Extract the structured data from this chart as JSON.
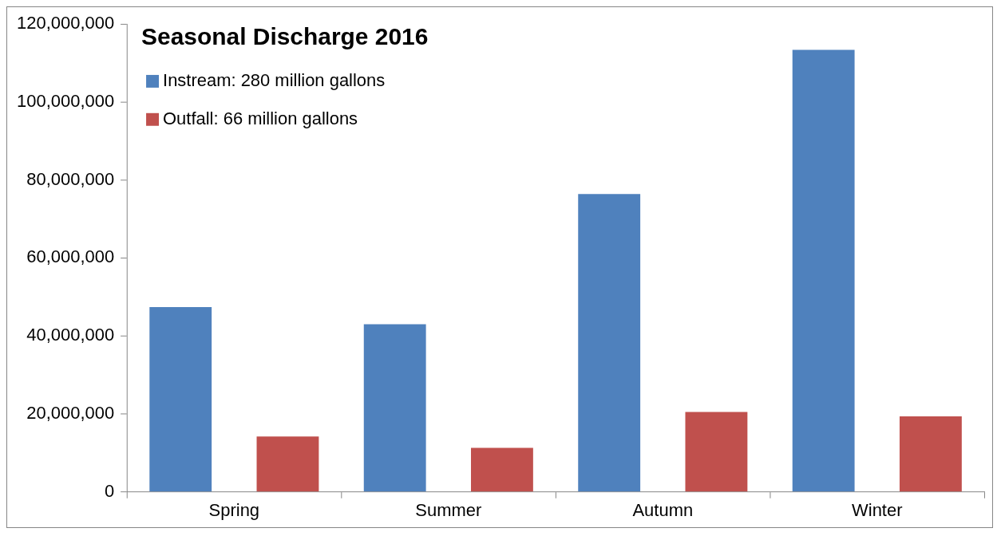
{
  "chart_data": {
    "type": "bar",
    "title": "Seasonal Discharge 2016",
    "categories": [
      "Spring",
      "Summer",
      "Autumn",
      "Winter"
    ],
    "series": [
      {
        "name": "Instream: 280 million gallons",
        "color": "#4f81bd",
        "values": [
          47400000,
          43000000,
          76400000,
          113400000
        ]
      },
      {
        "name": "Outfall: 66 million gallons",
        "color": "#c0504d",
        "values": [
          14200000,
          11300000,
          20500000,
          19400000
        ]
      }
    ],
    "ylim": [
      0,
      120000000
    ],
    "yticks": [
      {
        "value": 0,
        "label": "0"
      },
      {
        "value": 20000000,
        "label": "20,000,000"
      },
      {
        "value": 40000000,
        "label": "40,000,000"
      },
      {
        "value": 60000000,
        "label": "60,000,000"
      },
      {
        "value": 80000000,
        "label": "80,000,000"
      },
      {
        "value": 100000000,
        "label": "100,000,000"
      },
      {
        "value": 120000000,
        "label": "120,000,000"
      }
    ],
    "grid": false,
    "legend": "top left"
  }
}
